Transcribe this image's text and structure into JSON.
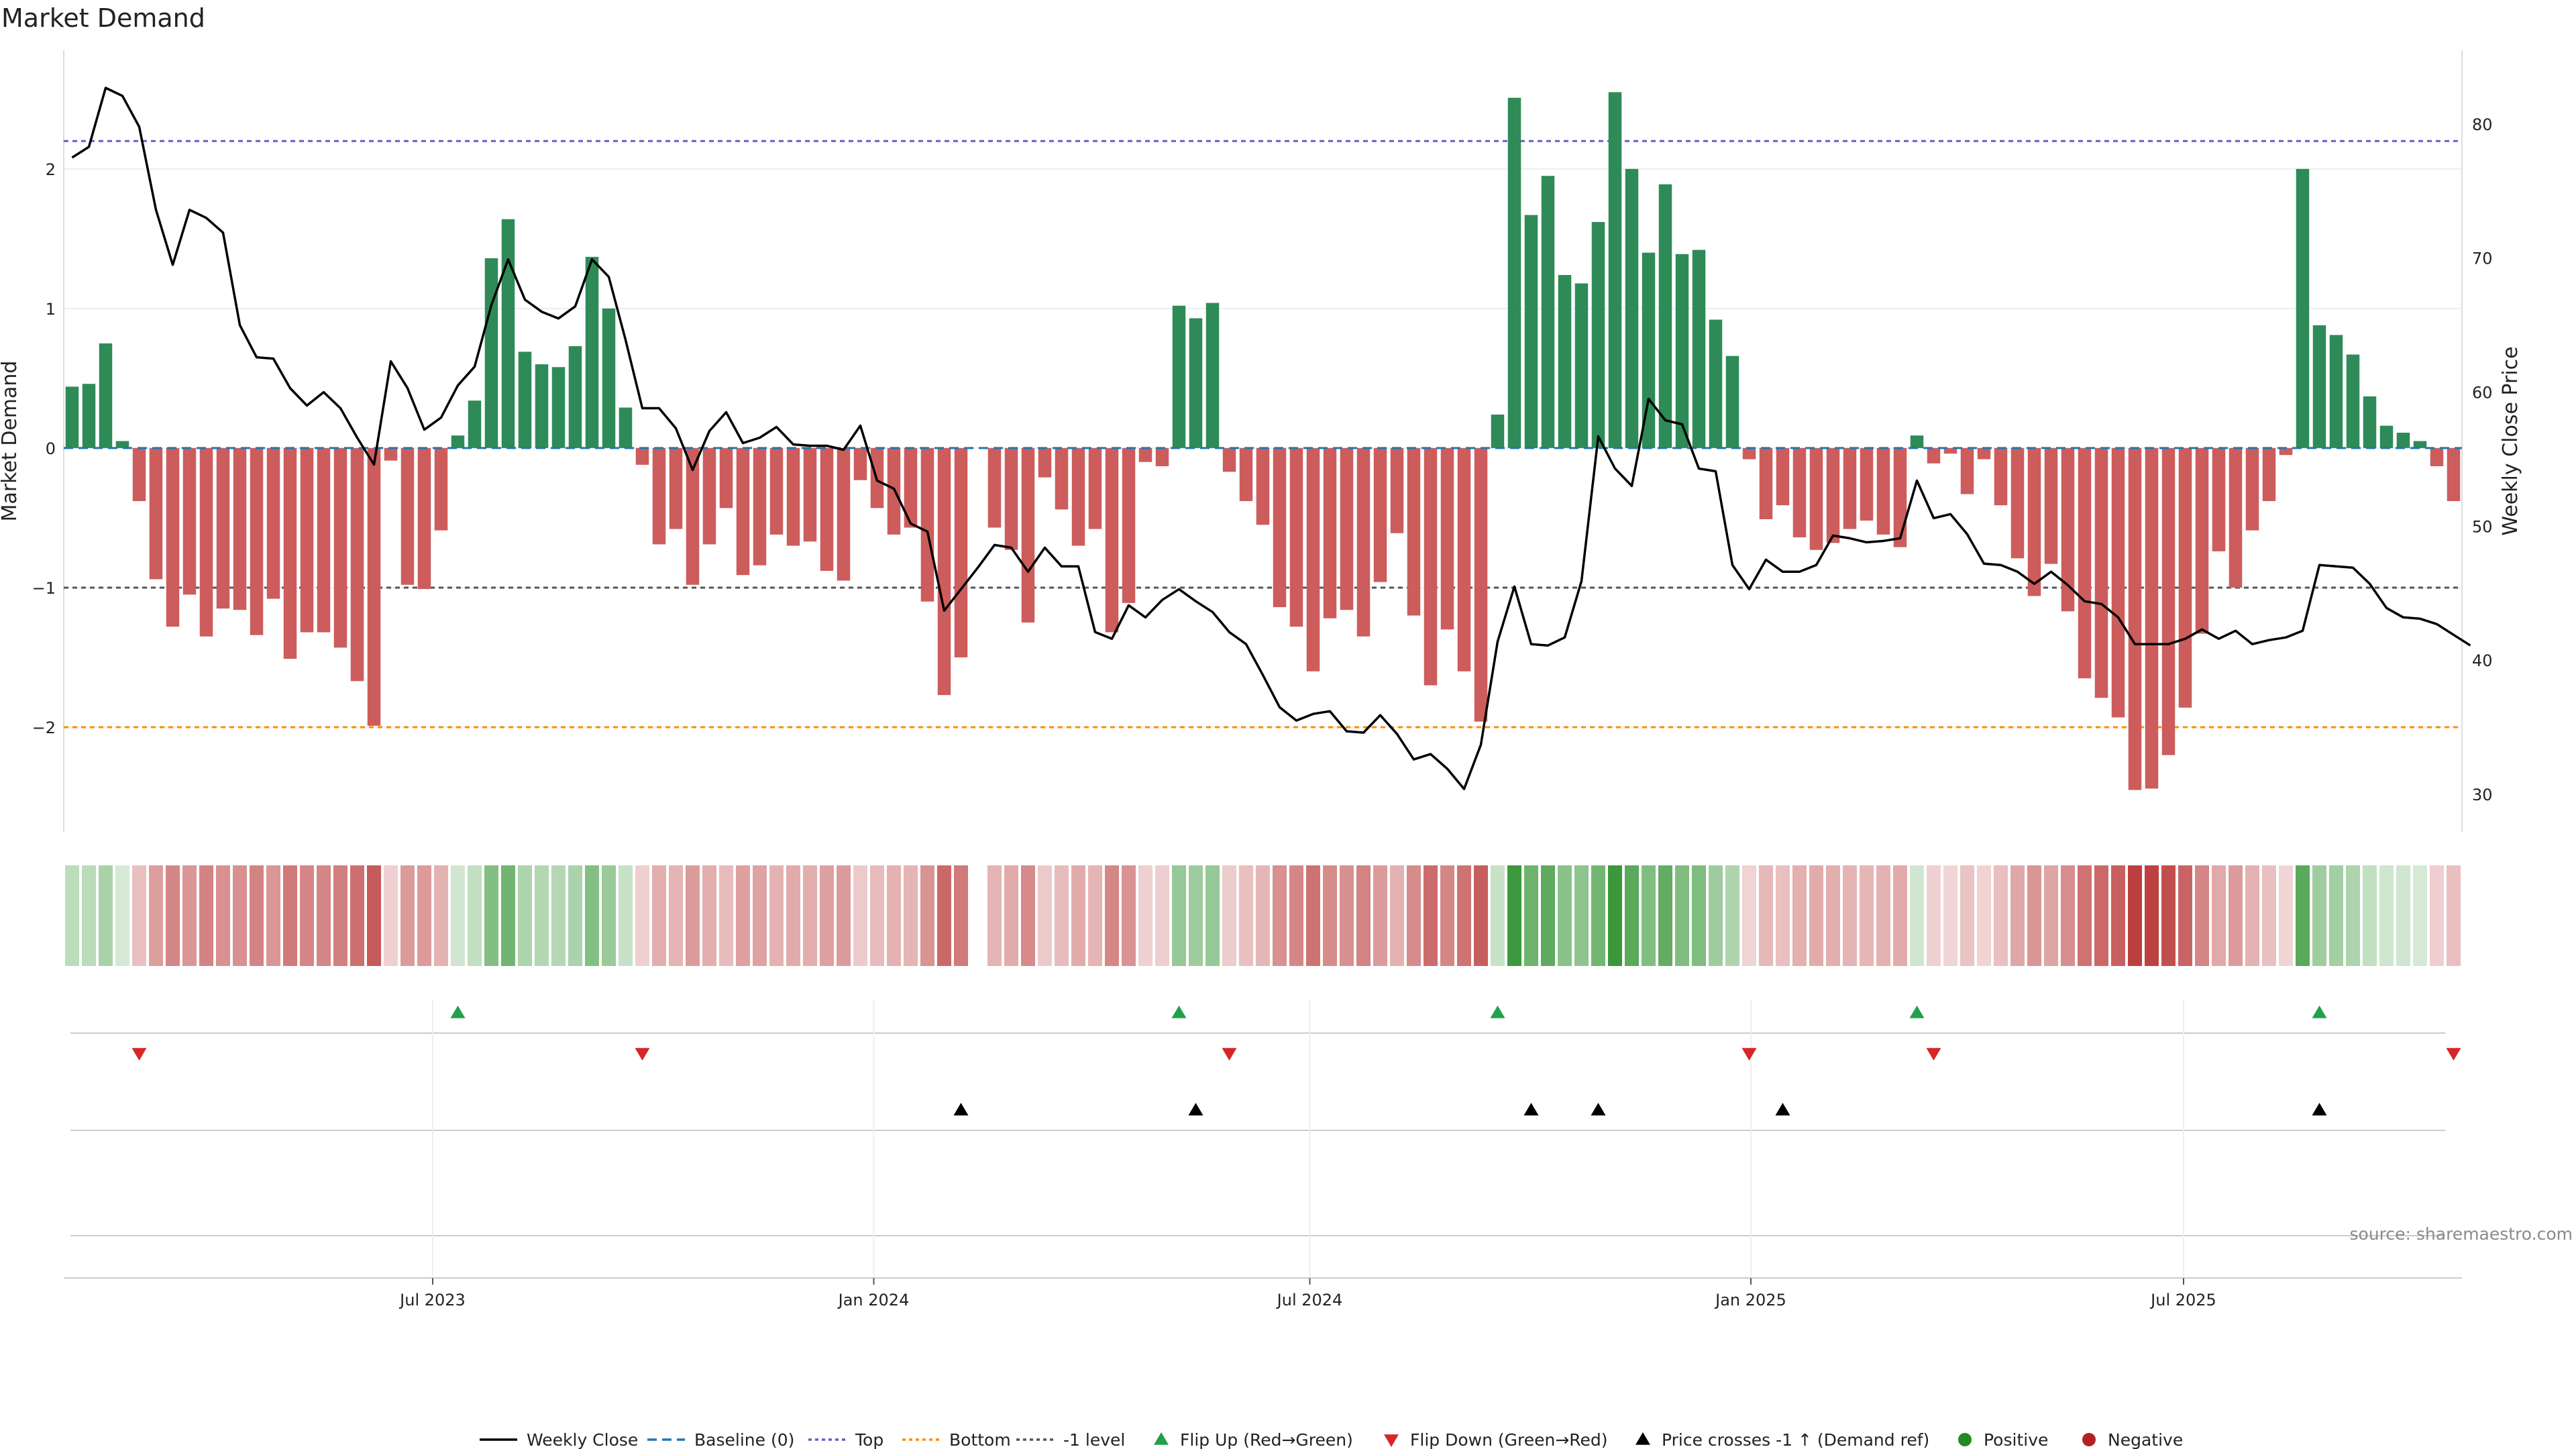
{
  "chart_data": {
    "type": "bar",
    "title": "Market Demand",
    "ylabel": "Market Demand",
    "y2label": "Weekly Close Price",
    "ylim": [
      -2.75,
      2.85
    ],
    "y2lim": [
      27.2,
      85.5
    ],
    "yticks": [
      "2",
      "1",
      "0",
      "−1",
      "−2"
    ],
    "yticks_values": [
      2,
      1,
      0,
      -1,
      -2
    ],
    "y2ticks": [
      "80",
      "70",
      "60",
      "50",
      "40",
      "30"
    ],
    "y2ticks_values": [
      80,
      70,
      60,
      50,
      40,
      30
    ],
    "xticks": [
      {
        "label": "Jul 2023",
        "week": 22
      },
      {
        "label": "Jan 2024",
        "week": 48.3
      },
      {
        "label": "Jul 2024",
        "week": 74.3
      },
      {
        "label": "Jan 2025",
        "week": 100.6
      },
      {
        "label": "Jul 2025",
        "week": 126.4
      }
    ],
    "reference_lines": {
      "top": 2.2,
      "bottom": -2.0,
      "minus_one": -1.0,
      "baseline": 0
    },
    "grid": true,
    "legend_position": "bottom",
    "colors": {
      "positive_bar": "#2e8b57",
      "negative_bar": "#cd5c5c",
      "price_line": "#000000",
      "top_line": "#6a5acd",
      "bottom_line": "#ff8c00",
      "minus_one_line": "#555555",
      "baseline": "#1f77b4",
      "flip_up": "#22a04b",
      "flip_down": "#d62728",
      "cross_marker": "#000000",
      "positive_dot": "#228b22",
      "negative_dot": "#b22222",
      "strip_green": "#228b22",
      "strip_red": "#b22222"
    },
    "series": [
      {
        "name": "Market Demand",
        "values": [
          0.44,
          0.46,
          0.75,
          0.05,
          -0.38,
          -0.94,
          -1.28,
          -1.05,
          -1.35,
          -1.15,
          -1.16,
          -1.34,
          -1.08,
          -1.51,
          -1.32,
          -1.32,
          -1.43,
          -1.67,
          -1.99,
          -0.09,
          -0.98,
          -1.01,
          -0.59,
          0.09,
          0.34,
          1.36,
          1.64,
          0.69,
          0.6,
          0.58,
          0.73,
          1.37,
          1.0,
          0.29,
          -0.12,
          -0.69,
          -0.58,
          -0.98,
          -0.69,
          -0.43,
          -0.91,
          -0.84,
          -0.62,
          -0.7,
          -0.67,
          -0.88,
          -0.95,
          -0.23,
          -0.43,
          -0.62,
          -0.57,
          -1.1,
          -1.77,
          -1.5,
          null,
          -0.57,
          -0.73,
          -1.25,
          -0.21,
          -0.44,
          -0.7,
          -0.58,
          -1.32,
          -1.11,
          -0.1,
          -0.13,
          1.02,
          0.93,
          1.04,
          -0.17,
          -0.38,
          -0.55,
          -1.14,
          -1.28,
          -1.6,
          -1.22,
          -1.16,
          -1.35,
          -0.96,
          -0.61,
          -1.2,
          -1.7,
          -1.3,
          -1.6,
          -1.96,
          0.24,
          2.51,
          1.67,
          1.95,
          1.24,
          1.18,
          1.62,
          2.55,
          2.0,
          1.4,
          1.89,
          1.39,
          1.42,
          0.92,
          0.66,
          -0.08,
          -0.51,
          -0.41,
          -0.64,
          -0.73,
          -0.68,
          -0.58,
          -0.52,
          -0.62,
          -0.71,
          0.09,
          -0.11,
          -0.04,
          -0.33,
          -0.08,
          -0.41,
          -0.79,
          -1.06,
          -0.83,
          -1.17,
          -1.65,
          -1.79,
          -1.93,
          -2.45,
          -2.44,
          -2.2,
          -1.86,
          -1.33,
          -0.74,
          -1.0,
          -0.59,
          -0.38,
          -0.05,
          2.0,
          0.88,
          0.81,
          0.67,
          0.37,
          0.16,
          0.11,
          0.05,
          -0.13,
          -0.38
        ]
      },
      {
        "name": "Weekly Close",
        "axis": "right",
        "values": [
          77.5,
          78.3,
          82.7,
          82.1,
          79.8,
          73.6,
          69.5,
          73.6,
          73.0,
          71.9,
          65.0,
          62.6,
          62.5,
          60.3,
          59.0,
          60.0,
          58.8,
          56.6,
          54.6,
          62.3,
          60.3,
          57.2,
          58.1,
          60.5,
          61.9,
          66.5,
          69.9,
          66.9,
          66.0,
          65.5,
          66.4,
          69.9,
          68.6,
          63.9,
          58.8,
          58.8,
          57.3,
          54.2,
          57.1,
          58.5,
          56.2,
          56.6,
          57.4,
          56.1,
          56.0,
          56.0,
          55.7,
          57.5,
          53.4,
          52.8,
          50.2,
          49.6,
          43.7,
          45.3,
          46.9,
          48.6,
          48.4,
          46.6,
          48.4,
          47.0,
          47.0,
          42.1,
          41.6,
          44.1,
          43.2,
          44.5,
          45.3,
          44.4,
          43.6,
          42.1,
          41.2,
          38.9,
          36.5,
          35.5,
          36.0,
          36.2,
          34.7,
          34.6,
          35.9,
          34.5,
          32.6,
          33.0,
          31.9,
          30.4,
          33.7,
          41.4,
          45.5,
          41.2,
          41.1,
          41.7,
          45.9,
          56.7,
          54.3,
          53.0,
          59.5,
          57.9,
          57.6,
          54.3,
          54.1,
          47.1,
          45.3,
          47.5,
          46.6,
          46.6,
          47.1,
          49.3,
          49.1,
          48.8,
          48.9,
          49.1,
          53.4,
          50.6,
          50.9,
          49.4,
          47.2,
          47.1,
          46.6,
          45.7,
          46.6,
          45.6,
          44.4,
          44.2,
          43.2,
          41.2,
          41.2,
          41.2,
          41.6,
          42.3,
          41.6,
          42.2,
          41.2,
          41.5,
          41.7,
          42.2,
          47.1,
          47.0,
          46.9,
          45.7,
          43.9,
          43.2,
          43.1,
          42.7,
          41.9,
          41.1
        ]
      }
    ],
    "flip_up_weeks": [
      23,
      66,
      85,
      110,
      134
    ],
    "flip_down_weeks": [
      4,
      34,
      69,
      100,
      111,
      142
    ],
    "price_cross_weeks": [
      53,
      67,
      87,
      91,
      102,
      134
    ],
    "legend": [
      "Weekly Close",
      "Baseline (0)",
      "Top",
      "Bottom",
      "-1 level",
      "Flip Up (Red→Green)",
      "Flip Down (Green→Red)",
      "Price crosses -1 ↑ (Demand ref)",
      "Positive",
      "Negative"
    ],
    "source": "source: sharemaestro.com"
  }
}
